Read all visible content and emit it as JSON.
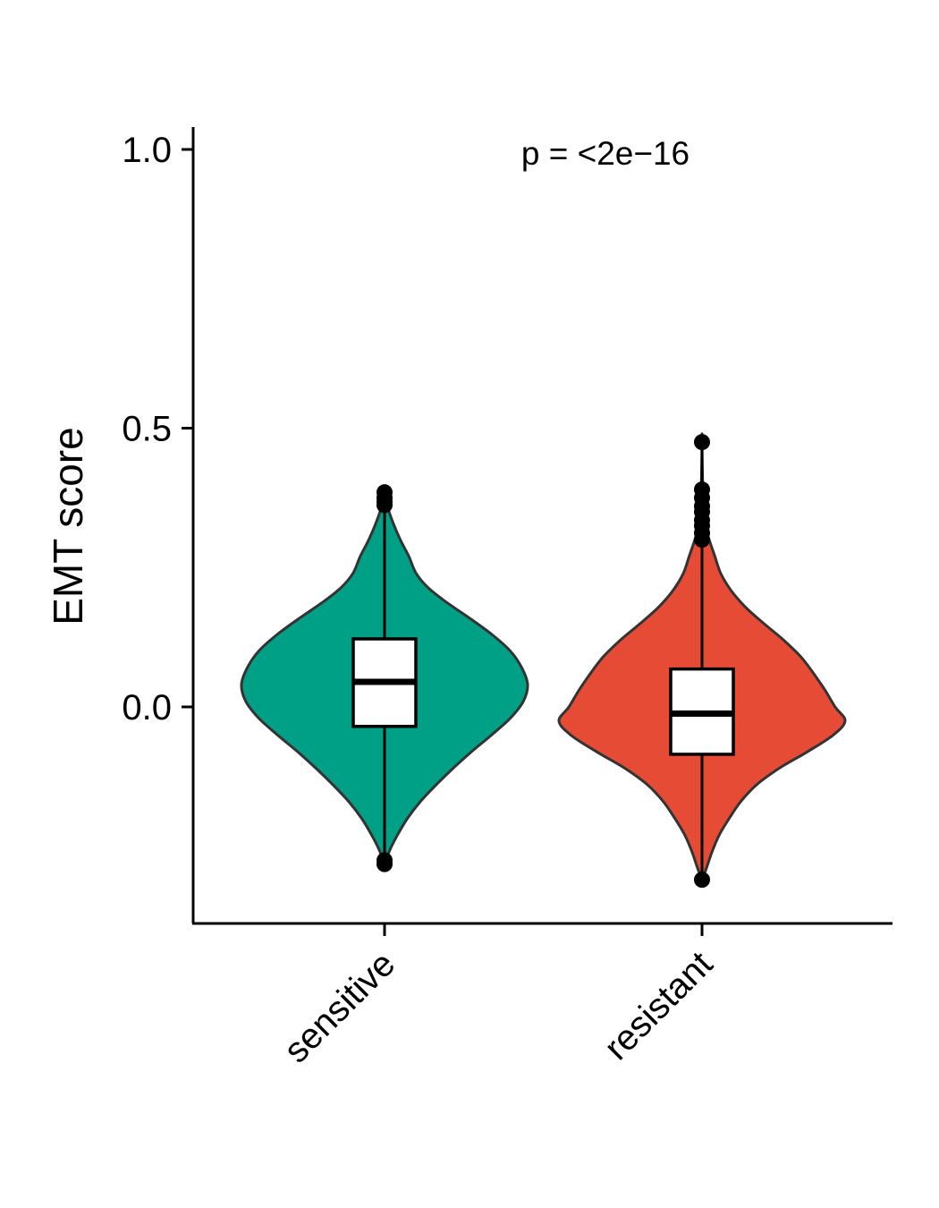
{
  "chart_data": {
    "type": "violin",
    "ylabel": "EMT score",
    "xlabel": "",
    "annotation": "p = <2e−16",
    "y_ticks": [
      {
        "value": 0.0,
        "label": "0.0"
      },
      {
        "value": 0.5,
        "label": "0.5"
      },
      {
        "value": 1.0,
        "label": "1.0"
      }
    ],
    "ylim": [
      -0.385,
      1.04
    ],
    "categories": [
      "sensitive",
      "resistant"
    ],
    "grid": false,
    "legend": "none",
    "groups": [
      {
        "category": "sensitive",
        "color": "#00A087",
        "box": {
          "q1": -0.035,
          "median": 0.045,
          "q3": 0.122,
          "whisker_low": -0.275,
          "whisker_high": 0.385
        },
        "outliers": [
          0.385,
          0.375,
          0.368,
          0.362,
          -0.275,
          -0.282
        ],
        "violin_profile": [
          [
            0.39,
            0.0
          ],
          [
            0.36,
            0.02
          ],
          [
            0.33,
            0.06
          ],
          [
            0.3,
            0.11
          ],
          [
            0.27,
            0.17
          ],
          [
            0.24,
            0.22
          ],
          [
            0.215,
            0.3
          ],
          [
            0.19,
            0.42
          ],
          [
            0.16,
            0.59
          ],
          [
            0.13,
            0.75
          ],
          [
            0.1,
            0.88
          ],
          [
            0.07,
            0.96
          ],
          [
            0.04,
            1.0
          ],
          [
            0.01,
            0.97
          ],
          [
            -0.02,
            0.88
          ],
          [
            -0.05,
            0.75
          ],
          [
            -0.08,
            0.61
          ],
          [
            -0.11,
            0.48
          ],
          [
            -0.14,
            0.36
          ],
          [
            -0.17,
            0.25
          ],
          [
            -0.2,
            0.16
          ],
          [
            -0.23,
            0.09
          ],
          [
            -0.255,
            0.04
          ],
          [
            -0.275,
            0.01
          ],
          [
            -0.285,
            0.0
          ]
        ]
      },
      {
        "category": "resistant",
        "color": "#E64B35",
        "box": {
          "q1": -0.085,
          "median": -0.012,
          "q3": 0.068,
          "whisker_low": -0.31,
          "whisker_high": 0.475
        },
        "outliers": [
          0.475,
          0.39,
          0.375,
          0.36,
          0.35,
          0.335,
          0.325,
          0.312,
          0.3,
          -0.31
        ],
        "violin_profile": [
          [
            0.48,
            0.0
          ],
          [
            0.4,
            0.005
          ],
          [
            0.33,
            0.02
          ],
          [
            0.3,
            0.05
          ],
          [
            0.27,
            0.09
          ],
          [
            0.24,
            0.13
          ],
          [
            0.21,
            0.2
          ],
          [
            0.18,
            0.3
          ],
          [
            0.15,
            0.43
          ],
          [
            0.12,
            0.57
          ],
          [
            0.09,
            0.69
          ],
          [
            0.06,
            0.78
          ],
          [
            0.03,
            0.86
          ],
          [
            0.0,
            0.93
          ],
          [
            -0.025,
            1.0
          ],
          [
            -0.05,
            0.92
          ],
          [
            -0.08,
            0.74
          ],
          [
            -0.11,
            0.54
          ],
          [
            -0.14,
            0.38
          ],
          [
            -0.17,
            0.27
          ],
          [
            -0.2,
            0.19
          ],
          [
            -0.23,
            0.12
          ],
          [
            -0.26,
            0.07
          ],
          [
            -0.29,
            0.03
          ],
          [
            -0.31,
            0.0
          ]
        ]
      }
    ]
  }
}
